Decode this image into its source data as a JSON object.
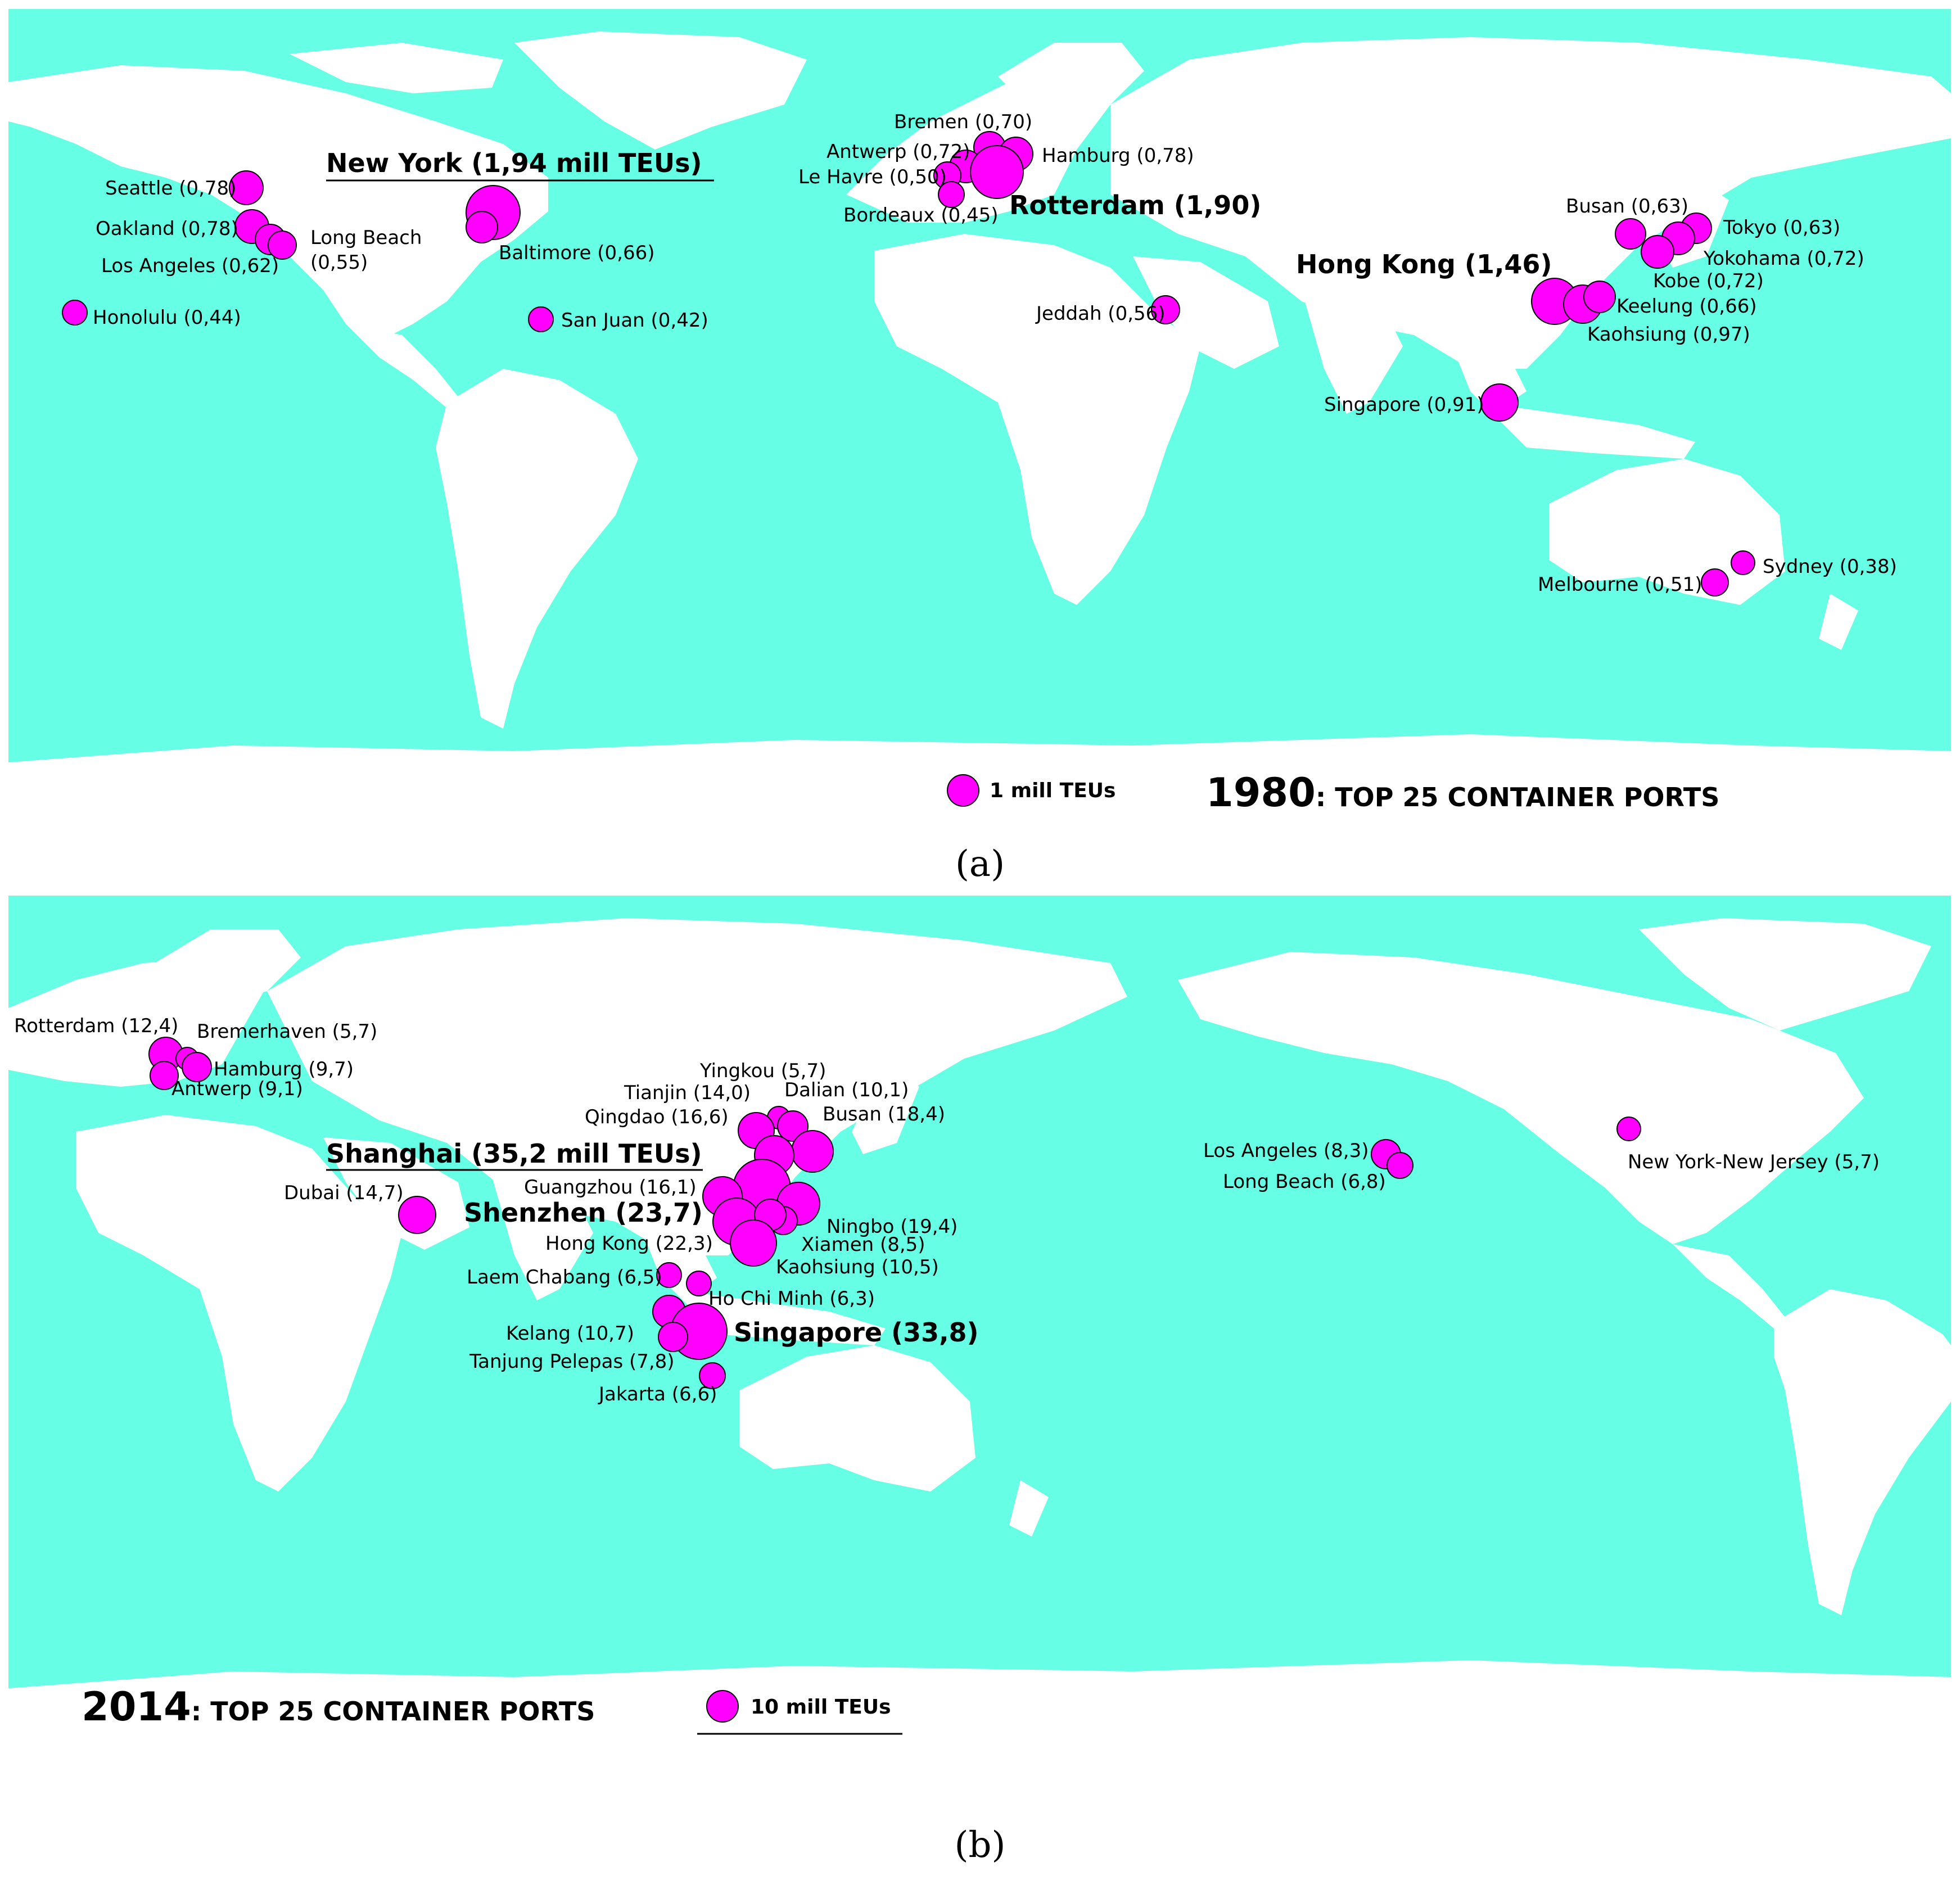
{
  "panel_a": {
    "title_year": "1980",
    "title_rest": ": TOP 25 CONTAINER PORTS",
    "legend_label": "1 mill TEUs",
    "caption": "(a)",
    "ports": [
      {
        "label": "New York (1,94 mill TEUs)",
        "value": 1.94,
        "major": true
      },
      {
        "label": "Rotterdam (1,90)",
        "value": 1.9,
        "major": true
      },
      {
        "label": "Hong Kong (1,46)",
        "value": 1.46,
        "major": true
      },
      {
        "label": "Kaohsiung (0,97)",
        "value": 0.97
      },
      {
        "label": "Singapore (0,91)",
        "value": 0.91
      },
      {
        "label": "Hamburg (0,78)",
        "value": 0.78
      },
      {
        "label": "Seattle (0,78)",
        "value": 0.78
      },
      {
        "label": "Oakland (0,78)",
        "value": 0.78
      },
      {
        "label": "Antwerp (0,72)",
        "value": 0.72
      },
      {
        "label": "Yokohama (0,72)",
        "value": 0.72
      },
      {
        "label": "Kobe (0,72)",
        "value": 0.72
      },
      {
        "label": "Bremen (0,70)",
        "value": 0.7
      },
      {
        "label": "Baltimore (0,66)",
        "value": 0.66
      },
      {
        "label": "Keelung (0,66)",
        "value": 0.66
      },
      {
        "label": "Busan (0,63)",
        "value": 0.63
      },
      {
        "label": "Tokyo (0,63)",
        "value": 0.63
      },
      {
        "label": "Los Angeles (0,62)",
        "value": 0.62
      },
      {
        "label": "Jeddah (0,56)",
        "value": 0.56
      },
      {
        "label": "Long Beach",
        "value": 0.55
      },
      {
        "label": "(0,55)"
      },
      {
        "label": "Melbourne (0,51)",
        "value": 0.51
      },
      {
        "label": "Le Havre (0,50)",
        "value": 0.5
      },
      {
        "label": "Bordeaux (0,45)",
        "value": 0.45
      },
      {
        "label": "Honolulu (0,44)",
        "value": 0.44
      },
      {
        "label": "San Juan (0,42)",
        "value": 0.42
      },
      {
        "label": "Sydney (0,38)",
        "value": 0.38
      }
    ]
  },
  "panel_b": {
    "title_year": "2014",
    "title_rest": ": TOP 25 CONTAINER PORTS",
    "legend_label": "10 mill TEUs",
    "caption": "(b)",
    "ports": [
      {
        "label": "Shanghai (35,2 mill TEUs)",
        "value": 35.2,
        "major": true
      },
      {
        "label": "Singapore (33,8)",
        "value": 33.8,
        "major": true
      },
      {
        "label": "Shenzhen (23,7)",
        "value": 23.7,
        "major": true
      },
      {
        "label": "Hong Kong (22,3)",
        "value": 22.3
      },
      {
        "label": "Ningbo (19,4)",
        "value": 19.4
      },
      {
        "label": "Busan (18,4)",
        "value": 18.4
      },
      {
        "label": "Qingdao (16,6)",
        "value": 16.6
      },
      {
        "label": "Guangzhou (16,1)",
        "value": 16.1
      },
      {
        "label": "Dubai (14,7)",
        "value": 14.7
      },
      {
        "label": "Tianjin (14,0)",
        "value": 14.0
      },
      {
        "label": "Rotterdam (12,4)",
        "value": 12.4
      },
      {
        "label": "Kelang (10,7)",
        "value": 10.7
      },
      {
        "label": "Kaohsiung (10,5)",
        "value": 10.5
      },
      {
        "label": "Dalian (10,1)",
        "value": 10.1
      },
      {
        "label": "Hamburg (9,7)",
        "value": 9.7
      },
      {
        "label": "Antwerp (9,1)",
        "value": 9.1
      },
      {
        "label": "Xiamen (8,5)",
        "value": 8.5
      },
      {
        "label": "Los Angeles (8,3)",
        "value": 8.3
      },
      {
        "label": "Tanjung Pelepas (7,8)",
        "value": 7.8
      },
      {
        "label": "Long Beach (6,8)",
        "value": 6.8
      },
      {
        "label": "Jakarta (6,6)",
        "value": 6.6
      },
      {
        "label": "Laem Chabang (6,5)",
        "value": 6.5
      },
      {
        "label": "Ho Chi Minh (6,3)",
        "value": 6.3
      },
      {
        "label": "Bremerhaven (5,7)",
        "value": 5.7
      },
      {
        "label": "Yingkou (5,7)",
        "value": 5.7
      },
      {
        "label": "New York-New Jersey (5,7)",
        "value": 5.7
      }
    ]
  },
  "colors": {
    "sea": "#66ffe6",
    "land": "#ffffff",
    "port": "#ff00ff"
  }
}
